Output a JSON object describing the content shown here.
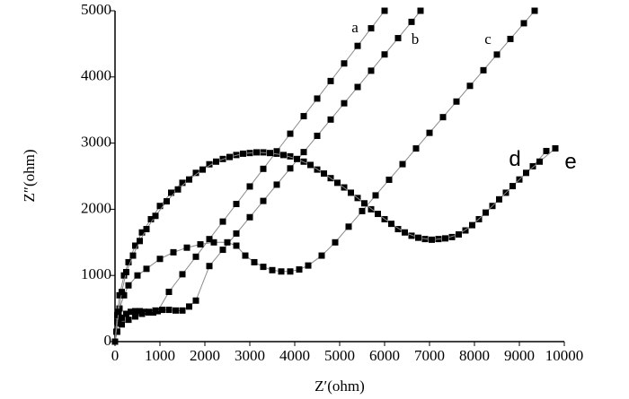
{
  "chart_data": {
    "type": "scatter",
    "xlabel": "Z′(ohm)",
    "ylabel": "Z″(ohm)",
    "xlim": [
      0,
      10000
    ],
    "ylim": [
      0,
      5000
    ],
    "xticks": [
      0,
      1000,
      2000,
      3000,
      4000,
      5000,
      6000,
      7000,
      8000,
      9000,
      10000
    ],
    "yticks": [
      0,
      1000,
      2000,
      3000,
      4000,
      5000
    ],
    "series": [
      {
        "name": "a",
        "color": "#000000",
        "x": [
          0,
          30,
          80,
          150,
          250,
          350,
          450,
          550,
          650,
          750,
          850,
          950,
          1200,
          1500,
          1800,
          2100,
          2400,
          2700,
          3000,
          3300,
          3600,
          3900,
          4200,
          4500,
          4800,
          5100,
          5400,
          5700,
          6000
        ],
        "y": [
          0,
          150,
          280,
          360,
          420,
          450,
          460,
          460,
          450,
          440,
          440,
          460,
          752,
          1018,
          1283,
          1549,
          1814,
          2080,
          2345,
          2611,
          2876,
          3142,
          3407,
          3673,
          3938,
          4204,
          4469,
          4735,
          5000
        ]
      },
      {
        "name": "b",
        "color": "#000000",
        "x": [
          0,
          50,
          150,
          300,
          450,
          600,
          750,
          900,
          1050,
          1200,
          1350,
          1500,
          1650,
          1800,
          2100,
          2400,
          2700,
          3000,
          3300,
          3600,
          3900,
          4200,
          4500,
          4800,
          5100,
          5400,
          5700,
          6000,
          6300,
          6600,
          6800
        ],
        "y": [
          0,
          150,
          260,
          330,
          380,
          420,
          450,
          470,
          480,
          480,
          470,
          470,
          530,
          620,
          1142,
          1388,
          1634,
          1880,
          2126,
          2372,
          2618,
          2864,
          3110,
          3356,
          3602,
          3848,
          4094,
          4340,
          4586,
          4832,
          5000
        ]
      },
      {
        "name": "c",
        "color": "#000000",
        "x": [
          0,
          50,
          100,
          200,
          300,
          500,
          700,
          1000,
          1300,
          1600,
          1900,
          2200,
          2500,
          2700,
          2900,
          3100,
          3300,
          3500,
          3700,
          3900,
          4100,
          4300,
          4600,
          4900,
          5200,
          5500,
          5800,
          6100,
          6400,
          6700,
          7000,
          7300,
          7600,
          7900,
          8200,
          8500,
          8800,
          9100,
          9340
        ],
        "y": [
          0,
          300,
          500,
          700,
          850,
          1000,
          1100,
          1250,
          1350,
          1420,
          1470,
          1500,
          1500,
          1450,
          1300,
          1200,
          1130,
          1080,
          1060,
          1060,
          1090,
          1150,
          1300,
          1500,
          1737,
          1973,
          2210,
          2446,
          2682,
          2919,
          3155,
          3392,
          3628,
          3865,
          4101,
          4338,
          4574,
          4811,
          5000
        ]
      },
      {
        "name": "d",
        "color": "#000000",
        "x": [
          0,
          50,
          100,
          200,
          300,
          450,
          600,
          800,
          1000,
          1250,
          1500,
          1800,
          2100,
          2400,
          2700,
          3000,
          3300,
          3600,
          3900,
          4200,
          4500,
          4800,
          5100,
          5400,
          5700,
          6000,
          6300,
          6600,
          6900,
          7200,
          7500,
          7800,
          8100,
          8400,
          8700,
          9000,
          9300,
          9600
        ],
        "y": [
          0,
          400,
          700,
          1000,
          1200,
          1450,
          1650,
          1850,
          2050,
          2250,
          2400,
          2550,
          2680,
          2760,
          2820,
          2850,
          2860,
          2840,
          2800,
          2720,
          2600,
          2470,
          2330,
          2170,
          2000,
          1850,
          1700,
          1600,
          1550,
          1550,
          1580,
          1680,
          1850,
          2050,
          2250,
          2450,
          2650,
          2880
        ]
      },
      {
        "name": "e",
        "color": "#000000",
        "x": [
          0,
          80,
          150,
          250,
          400,
          550,
          700,
          900,
          1150,
          1400,
          1650,
          1950,
          2250,
          2550,
          2850,
          3150,
          3450,
          3750,
          4050,
          4350,
          4650,
          4950,
          5250,
          5550,
          5850,
          6150,
          6450,
          6750,
          7050,
          7350,
          7650,
          7950,
          8250,
          8550,
          8850,
          9150,
          9450,
          9800
        ],
        "y": [
          0,
          450,
          750,
          1050,
          1300,
          1520,
          1700,
          1900,
          2120,
          2300,
          2450,
          2600,
          2720,
          2790,
          2840,
          2860,
          2850,
          2820,
          2760,
          2670,
          2540,
          2400,
          2250,
          2090,
          1930,
          1780,
          1650,
          1570,
          1540,
          1560,
          1620,
          1760,
          1950,
          2150,
          2350,
          2550,
          2720,
          2920
        ]
      }
    ]
  }
}
